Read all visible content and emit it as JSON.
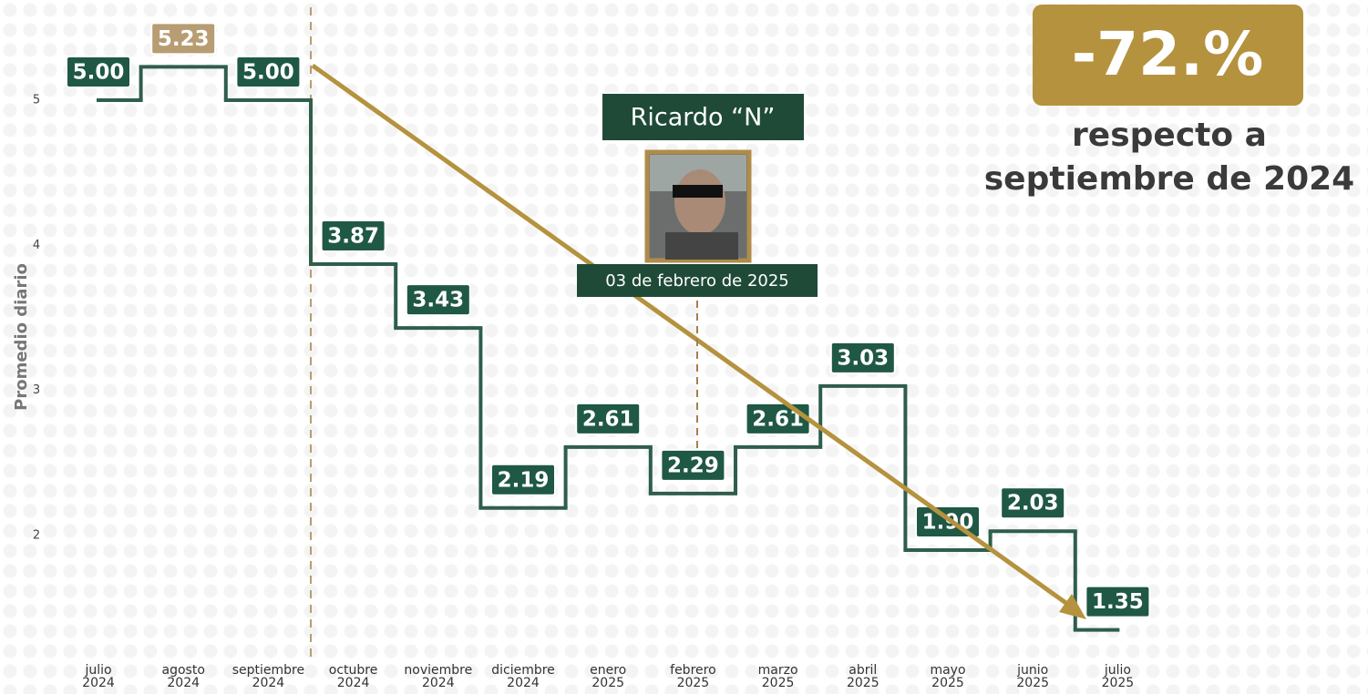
{
  "chart_data": {
    "type": "step",
    "y_label": "Promedio diario",
    "categories": [
      "julio 2024",
      "agosto 2024",
      "septiembre 2024",
      "octubre 2024",
      "noviembre 2024",
      "diciembre 2024",
      "enero 2025",
      "febrero 2025",
      "marzo 2025",
      "abril 2025",
      "mayo 2025",
      "junio 2025",
      "julio 2025"
    ],
    "values": [
      5,
      5.23,
      5,
      3.87,
      3.43,
      2.19,
      2.61,
      2.29,
      2.61,
      3.03,
      1.9,
      2.03,
      1.35
    ],
    "value_labels": [
      "5.00",
      "5.23",
      "5.00",
      "3.87",
      "3.43",
      "2.19",
      "2.61",
      "2.29",
      "2.61",
      "3.03",
      "1.90",
      "2.03",
      "1.35"
    ],
    "color": "#2f5e4b",
    "label_color": "#1f5844",
    "max_label_color": "#b89c72",
    "ylim": [
      1.2,
      5.6
    ],
    "yticks": [
      2,
      3,
      4,
      5
    ],
    "grid": false,
    "annotations": {
      "person": "Ricardo “N”",
      "date": "03 de febrero de 2025",
      "change": "-72.%",
      "note": [
        "respecto a",
        "septiembre de 2024"
      ]
    }
  }
}
